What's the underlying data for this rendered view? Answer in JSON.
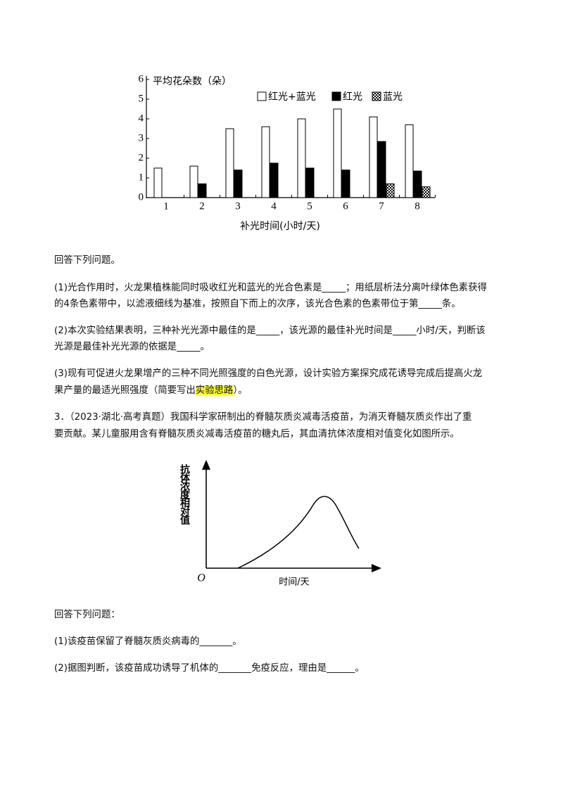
{
  "chart_data": {
    "type": "bar",
    "y_label": "平均花朵数（朵）",
    "x_label": "补光时间(小时/天)",
    "categories": [
      "1",
      "2",
      "3",
      "4",
      "5",
      "6",
      "7",
      "8"
    ],
    "series": [
      {
        "name": "红光+蓝光",
        "color": "#ffffff",
        "values": [
          1.5,
          1.6,
          3.5,
          3.6,
          4.0,
          4.5,
          4.1,
          3.7
        ]
      },
      {
        "name": "红光",
        "color": "#000000",
        "values": [
          null,
          0.7,
          1.4,
          1.75,
          1.5,
          1.4,
          2.85,
          1.35
        ]
      },
      {
        "name": "蓝光",
        "color": "checker",
        "values": [
          null,
          null,
          null,
          null,
          null,
          null,
          0.7,
          0.55
        ]
      }
    ],
    "ylim": [
      0,
      6
    ],
    "yticks": [
      0,
      1,
      2,
      3,
      4,
      5,
      6
    ]
  },
  "part2": {
    "intro": "回答下列问题。",
    "items": [
      {
        "lines": [
          "(1)光合作用时，火龙果植株能同时吸收红光和蓝光的光合色素是_____；用纸层析法分离叶绿体色素获得",
          "的4条色素带中，以滤液细线为基准，按照自下而上的次序，该光合色素的色素带位于第_____条。"
        ]
      },
      {
        "lines": [
          "(2)本次实验结果表明，三种补光光源中最佳的是_____，该光源的最佳补光时间是_____小时/天，判断该",
          "光源是最佳补光光源的依据是_____。"
        ]
      },
      {
        "lines": [
          "(3)现有可促进火龙果增产的三种不同光照强度的白色光源，设计实验方案探究成花诱导完成后提高火龙"
        ],
        "last_line": [
          "果产量的最适光照强度（简要写出",
          "实验思路",
          "）。"
        ]
      }
    ]
  },
  "problem3": {
    "lines": [
      "3．（2023·湖北·高考真题）我国科学家研制出的脊髓灰质炎减毒活疫苗，为消灭脊髓灰质炎作出了重",
      "要贡献。某儿童服用含有脊髓灰质炎减毒活疫苗的糖丸后，其血清抗体浓度相对值变化如图所示。"
    ],
    "diagram": {
      "y_label": "抗体浓度相对值",
      "origin": "O",
      "x_label": "时间/天"
    },
    "intro": "回答下列问题：",
    "items": [
      "(1)该疫苗保留了脊髓灰质炎病毒的_______。",
      "(2)据图判断，该疫苗成功诱导了机体的_______免疫反应，理由是______。"
    ]
  }
}
